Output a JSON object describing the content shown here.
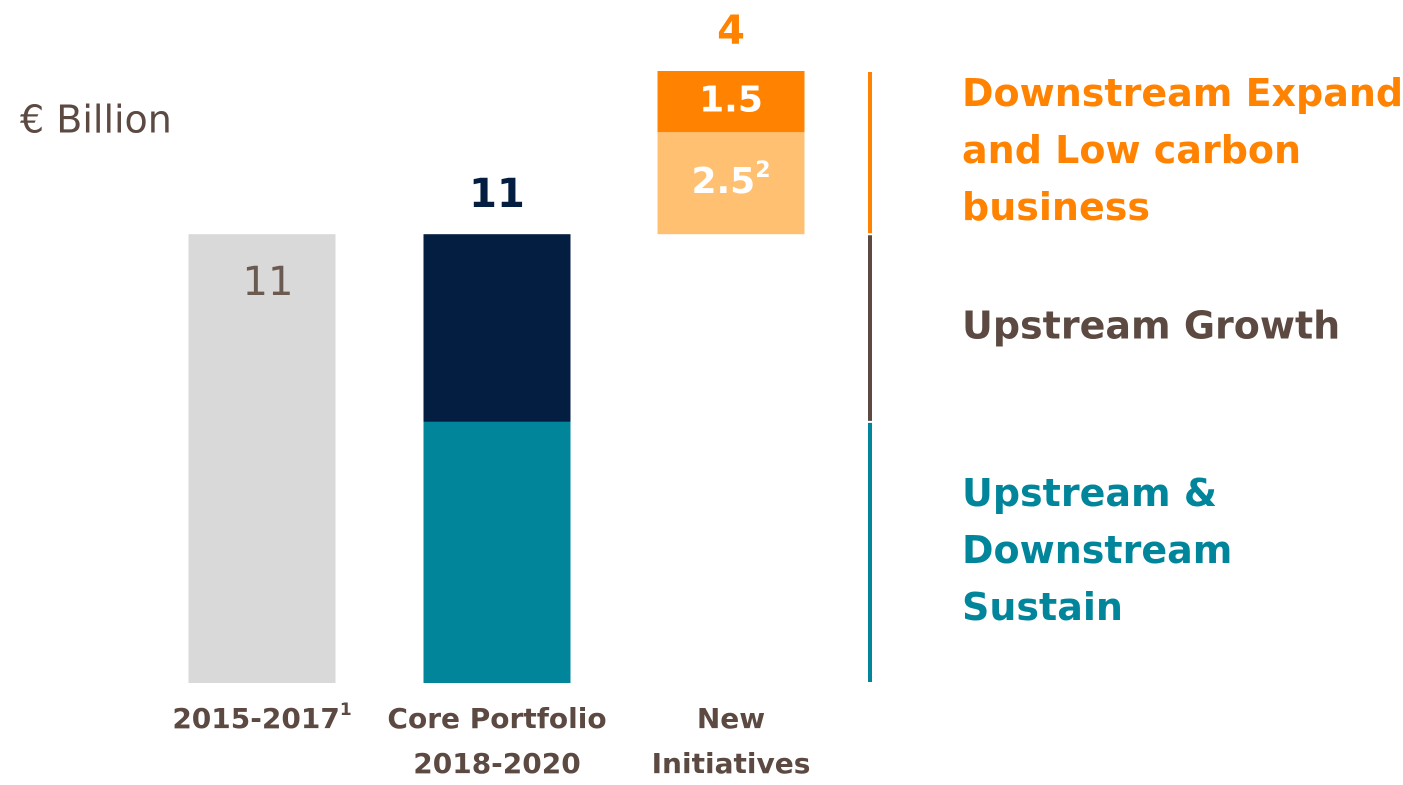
{
  "chart_data": {
    "type": "waterfall",
    "unit_label": "€ Billion",
    "ylim": [
      0,
      15
    ],
    "label_color": "#5c4a42",
    "bars": [
      {
        "label": [
          "2015-2017"
        ],
        "note": "1",
        "segments": [
          {
            "value": 11,
            "color": "#d9d9d9",
            "show_label": true,
            "label_color": "#6b5a50"
          }
        ]
      },
      {
        "label": [
          "Core Portfolio",
          "2018-2020"
        ],
        "total": 11,
        "total_color": "#041e42",
        "segments": [
          {
            "value": 6.4,
            "color": "#00859b",
            "group": 0
          },
          {
            "value": 4.6,
            "color": "#041e42",
            "group": 1
          }
        ]
      },
      {
        "label": [
          "New",
          "Initiatives"
        ],
        "total": 4,
        "total_color": "#ff8200",
        "floating": true,
        "segments": [
          {
            "value": 2.5,
            "note": "2",
            "color": "#ffc072",
            "group": 2,
            "show_label": true,
            "label_color": "#ffffff"
          },
          {
            "value": 1.5,
            "color": "#ff8200",
            "group": 2,
            "show_label": true,
            "label_color": "#ffffff"
          }
        ]
      }
    ],
    "groups": [
      {
        "name": [
          "Upstream &",
          "Downstream",
          "Sustain"
        ],
        "color": "#00859b"
      },
      {
        "name": [
          "Upstream Growth"
        ],
        "color": "#5c4a42"
      },
      {
        "name": [
          "Downstream Expand",
          "and Low carbon",
          "business"
        ],
        "color": "#ff8200"
      }
    ]
  }
}
